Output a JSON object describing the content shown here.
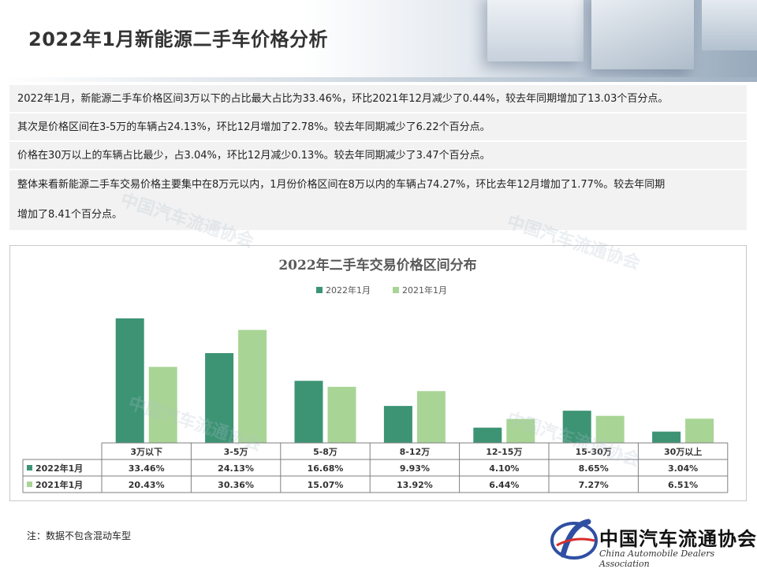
{
  "page": {
    "title": "2022年1月新能源二手车价格分析",
    "summary_lines": [
      "2022年1月，新能源二手车价格区间3万以下的占比最大占比为33.46%，环比2021年12月减少了0.44%，较去年同期增加了13.03个百分点。",
      "其次是价格区间在3-5万的车辆占24.13%，环比12月增加了2.78%。较去年同期减少了6.22个百分点。",
      "价格在30万以上的车辆占比最少，占3.04%，环比12月减少0.13%。较去年同期减少了3.47个百分点。",
      "整体来看新能源二手车交易价格主要集中在8万元以内，1月份价格区间在8万以内的车辆占74.27%，环比去年12月增加了1.77%。较去年同期",
      "增加了8.41个百分点。"
    ],
    "note": "注：数据不包含混动车型",
    "logo_name": "中国汽车流通协会",
    "logo_en": "China Automobile Dealers Association"
  },
  "colors": {
    "series_2022": "#3d9475",
    "series_2021": "#a8d595"
  },
  "chart_data": {
    "type": "bar",
    "title": "2022年二手车交易价格区间分布",
    "categories": [
      "3万以下",
      "3-5万",
      "5-8万",
      "8-12万",
      "12-15万",
      "15-30万",
      "30万以上"
    ],
    "series": [
      {
        "name": "2022年1月",
        "values": [
          33.46,
          24.13,
          16.68,
          9.93,
          4.1,
          8.65,
          3.04
        ],
        "labels": [
          "33.46%",
          "24.13%",
          "16.68%",
          "9.93%",
          "4.10%",
          "8.65%",
          "3.04%"
        ]
      },
      {
        "name": "2021年1月",
        "values": [
          20.43,
          30.36,
          15.07,
          13.92,
          6.44,
          7.27,
          6.51
        ],
        "labels": [
          "20.43%",
          "30.36%",
          "15.07%",
          "13.92%",
          "6.44%",
          "7.27%",
          "6.51%"
        ]
      }
    ],
    "ylim": [
      0,
      36
    ],
    "legend_position": "top-center",
    "grid": false,
    "data_table": true
  }
}
